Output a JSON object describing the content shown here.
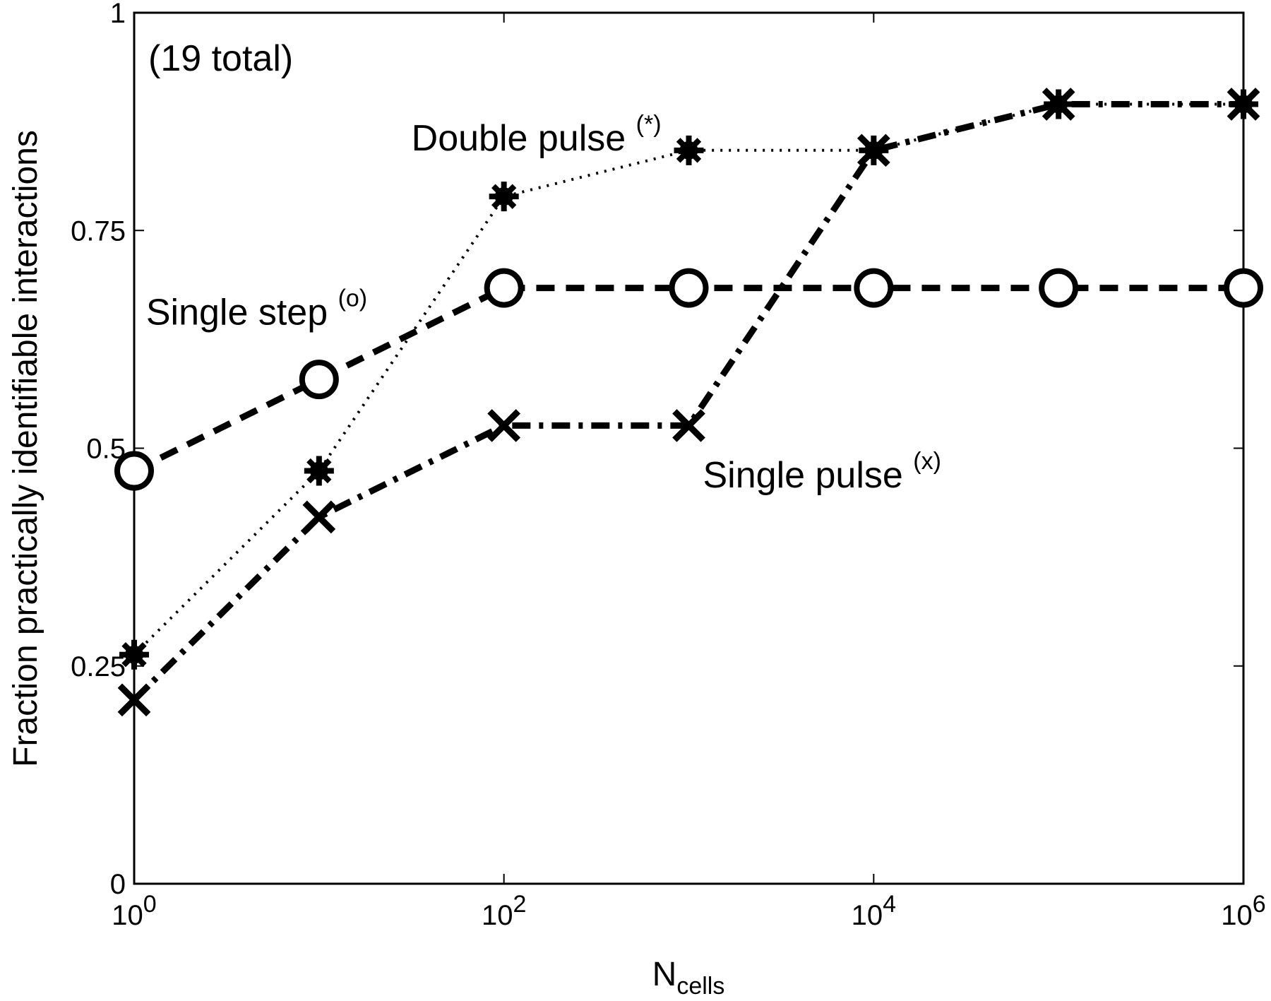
{
  "chart_data": {
    "type": "line",
    "xscale": "log",
    "xlim": [
      1,
      1000000
    ],
    "ylim": [
      0,
      1
    ],
    "grid": false,
    "legend": "none",
    "xlabel": "N",
    "xlabel_sub": "cells",
    "ylabel": "Fraction practically identifiable interactions",
    "annotation": "(19 total)",
    "x_ticks": [
      {
        "value": 1,
        "base": "10",
        "exp": "0"
      },
      {
        "value": 100,
        "base": "10",
        "exp": "2"
      },
      {
        "value": 10000,
        "base": "10",
        "exp": "4"
      },
      {
        "value": 1000000,
        "base": "10",
        "exp": "6"
      }
    ],
    "y_ticks": [
      {
        "value": 0,
        "label": "0"
      },
      {
        "value": 0.25,
        "label": "0.25"
      },
      {
        "value": 0.5,
        "label": "0.5"
      },
      {
        "value": 0.75,
        "label": "0.75"
      },
      {
        "value": 1,
        "label": "1"
      }
    ],
    "x": [
      1,
      10,
      100,
      1000,
      10000,
      100000,
      1000000
    ],
    "series": [
      {
        "name": "Single step",
        "symbol": "(o)",
        "marker": "circle",
        "linestyle": "dashed",
        "values": [
          0.474,
          0.579,
          0.684,
          0.684,
          0.684,
          0.684,
          0.684
        ],
        "label_anchor": {
          "x": 10,
          "y": 0.642
        }
      },
      {
        "name": "Double pulse",
        "symbol": "(*)",
        "marker": "asterisk",
        "linestyle": "dotted",
        "values": [
          0.263,
          0.474,
          0.789,
          0.842,
          0.842,
          0.895,
          0.895
        ],
        "label_anchor": {
          "x": 31.6,
          "y": 0.842
        }
      },
      {
        "name": "Single pulse",
        "symbol": "(x)",
        "marker": "x",
        "linestyle": "dashdot",
        "values": [
          0.211,
          0.421,
          0.526,
          0.526,
          0.842,
          0.895,
          0.895
        ],
        "label_anchor": {
          "x": 1000,
          "y": 0.455
        }
      }
    ],
    "colors": {
      "ink": "#000000",
      "background": "#ffffff"
    }
  }
}
